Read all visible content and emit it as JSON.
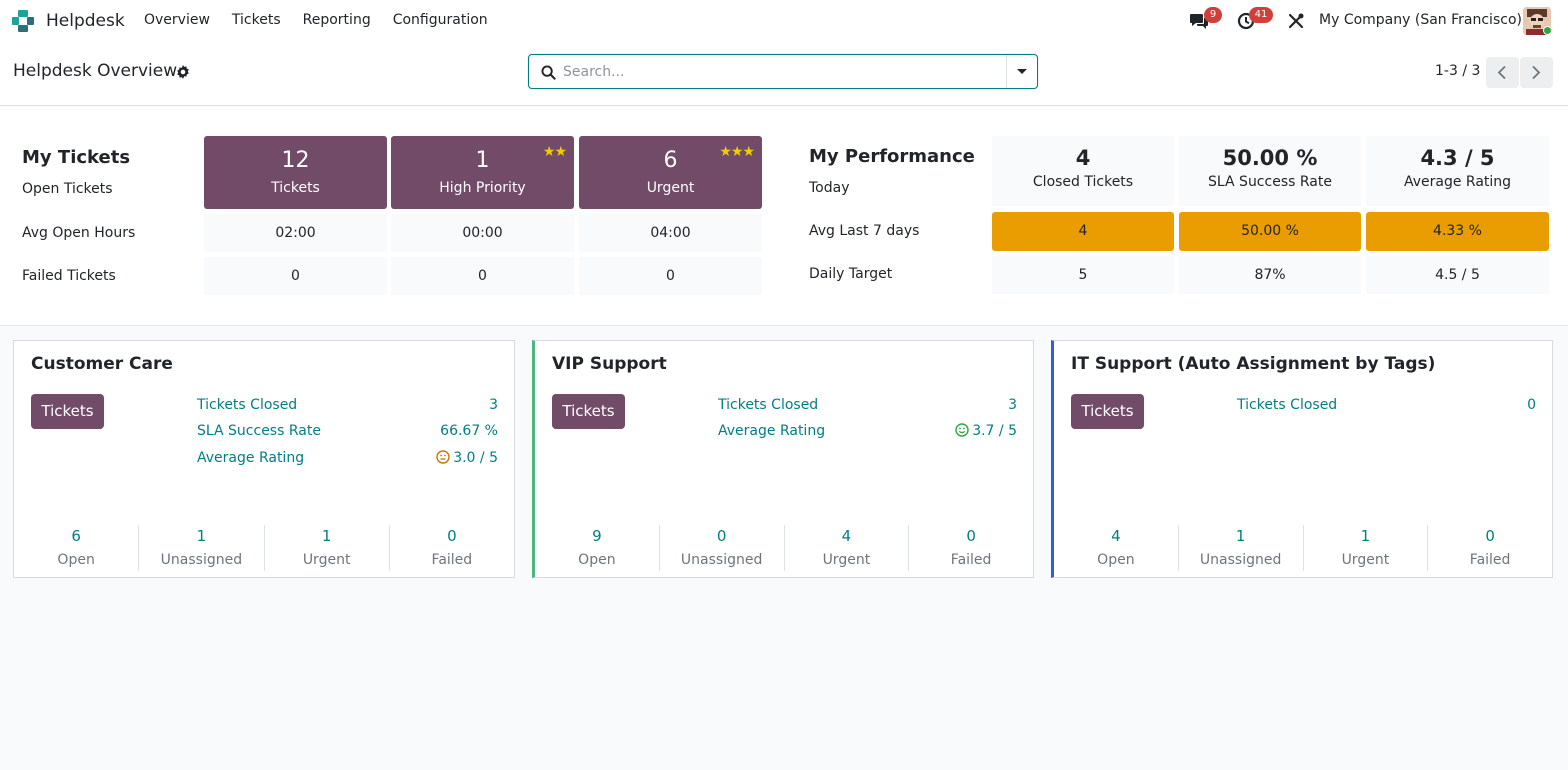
{
  "navbar": {
    "app_name": "Helpdesk",
    "menu": [
      "Overview",
      "Tickets",
      "Reporting",
      "Configuration"
    ],
    "messages_count": "9",
    "activities_count": "41",
    "company": "My Company (San Francisco)"
  },
  "control_panel": {
    "title": "Helpdesk Overview",
    "search_placeholder": "Search...",
    "pager": "1-3 / 3"
  },
  "my_tickets": {
    "heading": "My Tickets",
    "row_labels": [
      "Open Tickets",
      "Avg Open Hours",
      "Failed Tickets"
    ],
    "tiles": [
      {
        "value": "12",
        "label": "Tickets",
        "stars": ""
      },
      {
        "value": "1",
        "label": "High Priority",
        "stars": "★★"
      },
      {
        "value": "6",
        "label": "Urgent",
        "stars": "★★★"
      }
    ],
    "avg_open_hours": [
      "02:00",
      "00:00",
      "04:00"
    ],
    "failed_tickets": [
      "0",
      "0",
      "0"
    ]
  },
  "my_performance": {
    "heading": "My Performance",
    "row_labels": [
      "Today",
      "Avg Last 7 days",
      "Daily Target"
    ],
    "today": [
      {
        "value": "4",
        "label": "Closed Tickets"
      },
      {
        "value": "50.00 %",
        "label": "SLA Success Rate"
      },
      {
        "value": "4.3 / 5",
        "label": "Average Rating"
      }
    ],
    "avg_7_days": [
      "4",
      "50.00 %",
      "4.33 %"
    ],
    "daily_target": [
      "5",
      "87%",
      "4.5 / 5"
    ]
  },
  "teams": [
    {
      "name": "Customer Care",
      "button": "Tickets",
      "metrics": [
        {
          "label": "Tickets Closed",
          "value": "3",
          "face": ""
        },
        {
          "label": "SLA Success Rate",
          "value": "66.67 %",
          "face": ""
        },
        {
          "label": "Average Rating",
          "value": "3.0 / 5",
          "face": "neutral"
        }
      ],
      "counters": [
        {
          "value": "6",
          "label": "Open"
        },
        {
          "value": "1",
          "label": "Unassigned"
        },
        {
          "value": "1",
          "label": "Urgent"
        },
        {
          "value": "0",
          "label": "Failed"
        }
      ]
    },
    {
      "name": "VIP Support",
      "button": "Tickets",
      "metrics": [
        {
          "label": "Tickets Closed",
          "value": "3",
          "face": ""
        },
        {
          "label": "Average Rating",
          "value": "3.7 / 5",
          "face": "happy"
        }
      ],
      "counters": [
        {
          "value": "9",
          "label": "Open"
        },
        {
          "value": "0",
          "label": "Unassigned"
        },
        {
          "value": "4",
          "label": "Urgent"
        },
        {
          "value": "0",
          "label": "Failed"
        }
      ]
    },
    {
      "name": "IT Support (Auto Assignment by Tags)",
      "button": "Tickets",
      "metrics": [
        {
          "label": "Tickets Closed",
          "value": "0",
          "face": ""
        }
      ],
      "counters": [
        {
          "value": "4",
          "label": "Open"
        },
        {
          "value": "1",
          "label": "Unassigned"
        },
        {
          "value": "1",
          "label": "Urgent"
        },
        {
          "value": "0",
          "label": "Failed"
        }
      ]
    }
  ],
  "colors": {
    "brand": "#714b67",
    "link": "#017e84",
    "highlight": "#e99d00",
    "badge": "#d23f3a"
  }
}
